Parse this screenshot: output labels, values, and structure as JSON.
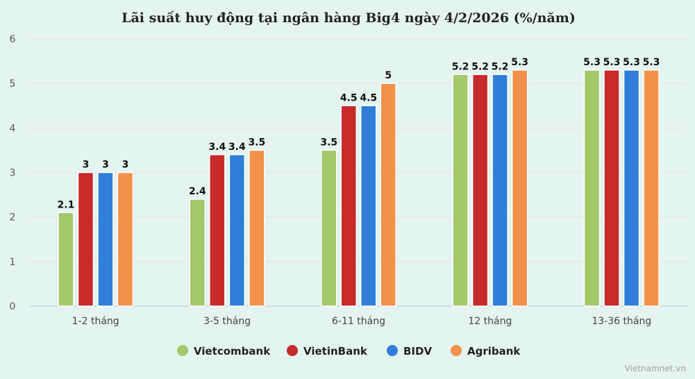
{
  "chart_data": {
    "type": "bar",
    "title": "Lãi suất huy động tại ngân hàng Big4 ngày 4/2/2026 (%/năm)",
    "categories": [
      "1-2 tháng",
      "3-5 tháng",
      "6-11 tháng",
      "12 tháng",
      "13-36 tháng"
    ],
    "series": [
      {
        "name": "Vietcombank",
        "color": "#a3c96a",
        "values": [
          2.1,
          2.4,
          3.5,
          5.2,
          5.3
        ]
      },
      {
        "name": "VietinBank",
        "color": "#c62a2a",
        "values": [
          3,
          3.4,
          4.5,
          5.2,
          5.3
        ]
      },
      {
        "name": "BIDV",
        "color": "#2f7fd8",
        "values": [
          3,
          3.4,
          4.5,
          5.2,
          5.3
        ]
      },
      {
        "name": "Agribank",
        "color": "#f2914a",
        "values": [
          3,
          3.5,
          5,
          5.3,
          5.3
        ]
      }
    ],
    "ylim": [
      0,
      6
    ],
    "yticks": [
      0,
      1,
      2,
      3,
      4,
      5,
      6
    ],
    "grid": true,
    "legend": "bottom-center",
    "data_labels": true
  },
  "credit": "Vietnamnet.vn"
}
